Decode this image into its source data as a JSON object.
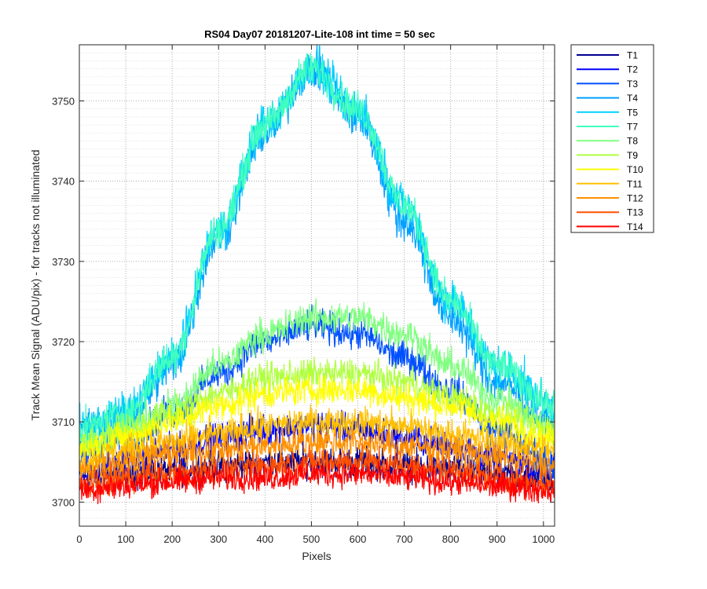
{
  "chart_data": {
    "type": "line",
    "title": "RS04 Day07 20181207-Lite-108 int time = 50 sec",
    "xlabel": "Pixels",
    "ylabel": "Track Mean Signal (ADU/pix) - for tracks not illuminated",
    "xlim": [
      0,
      1024
    ],
    "ylim": [
      3697,
      3757
    ],
    "xticks": [
      0,
      100,
      200,
      300,
      400,
      500,
      600,
      700,
      800,
      900,
      1000
    ],
    "yticks": [
      3700,
      3710,
      3720,
      3730,
      3740,
      3750
    ],
    "grid": "major+minor dotted",
    "legend_position": "outside-right-top",
    "x_sample": [
      0,
      100,
      200,
      300,
      400,
      500,
      600,
      700,
      800,
      900,
      1024
    ],
    "series": [
      {
        "name": "T1",
        "color": "#00008f",
        "values": [
          3703,
          3703.5,
          3704,
          3704.5,
          3705,
          3705,
          3705,
          3704.5,
          3704,
          3703.5,
          3703
        ],
        "noise": 3.0
      },
      {
        "name": "T2",
        "color": "#0000ff",
        "values": [
          3704,
          3705,
          3706.5,
          3708,
          3709,
          3709.5,
          3709,
          3708,
          3707,
          3705.5,
          3704
        ],
        "noise": 3.0
      },
      {
        "name": "T3",
        "color": "#0050ff",
        "values": [
          3706,
          3708,
          3711,
          3716,
          3720,
          3722,
          3721,
          3718,
          3714,
          3709,
          3705
        ],
        "noise": 3.2
      },
      {
        "name": "T4",
        "color": "#00a0ff",
        "values": [
          3709,
          3710,
          3717,
          3733,
          3746,
          3754,
          3748,
          3735,
          3723,
          3715,
          3710
        ],
        "noise": 4.0
      },
      {
        "name": "T5",
        "color": "#00d0ff",
        "values": [
          3709,
          3711,
          3718,
          3734,
          3747,
          3754,
          3749,
          3737,
          3725,
          3717,
          3712
        ],
        "noise": 4.0
      },
      {
        "name": "T7",
        "color": "#40ffc0",
        "values": [
          3709,
          3711,
          3718,
          3734,
          3747,
          3754,
          3749,
          3737,
          3725,
          3717,
          3712
        ],
        "noise": 3.5
      },
      {
        "name": "T8",
        "color": "#80ff80",
        "values": [
          3707,
          3709,
          3712,
          3717,
          3721,
          3723,
          3723,
          3721,
          3717,
          3713,
          3709
        ],
        "noise": 3.2
      },
      {
        "name": "T9",
        "color": "#b0ff40",
        "values": [
          3707,
          3709,
          3711,
          3713.5,
          3715.5,
          3716,
          3716,
          3715,
          3713,
          3711,
          3709
        ],
        "noise": 3.0
      },
      {
        "name": "T10",
        "color": "#ffff00",
        "values": [
          3706.5,
          3708,
          3710,
          3712,
          3713.5,
          3714,
          3714,
          3713,
          3712,
          3710,
          3708
        ],
        "noise": 3.0
      },
      {
        "name": "T11",
        "color": "#ffc000",
        "values": [
          3705,
          3706.5,
          3707.5,
          3708.5,
          3709.5,
          3710,
          3710,
          3709.5,
          3708.5,
          3707.5,
          3706.5
        ],
        "noise": 3.0
      },
      {
        "name": "T12",
        "color": "#ff9000",
        "values": [
          3704,
          3705,
          3706,
          3706.5,
          3707,
          3707.5,
          3707.5,
          3707,
          3706.5,
          3705.5,
          3704.5
        ],
        "noise": 3.0
      },
      {
        "name": "T13",
        "color": "#ff5000",
        "values": [
          3702,
          3703,
          3703.5,
          3704,
          3704.5,
          3705,
          3705,
          3704.5,
          3704,
          3703,
          3702
        ],
        "noise": 2.8
      },
      {
        "name": "T14",
        "color": "#ff0000",
        "values": [
          3701.5,
          3702,
          3702.5,
          3703,
          3703,
          3703.5,
          3703.5,
          3703,
          3702.5,
          3702,
          3701.5
        ],
        "noise": 2.6
      }
    ]
  }
}
